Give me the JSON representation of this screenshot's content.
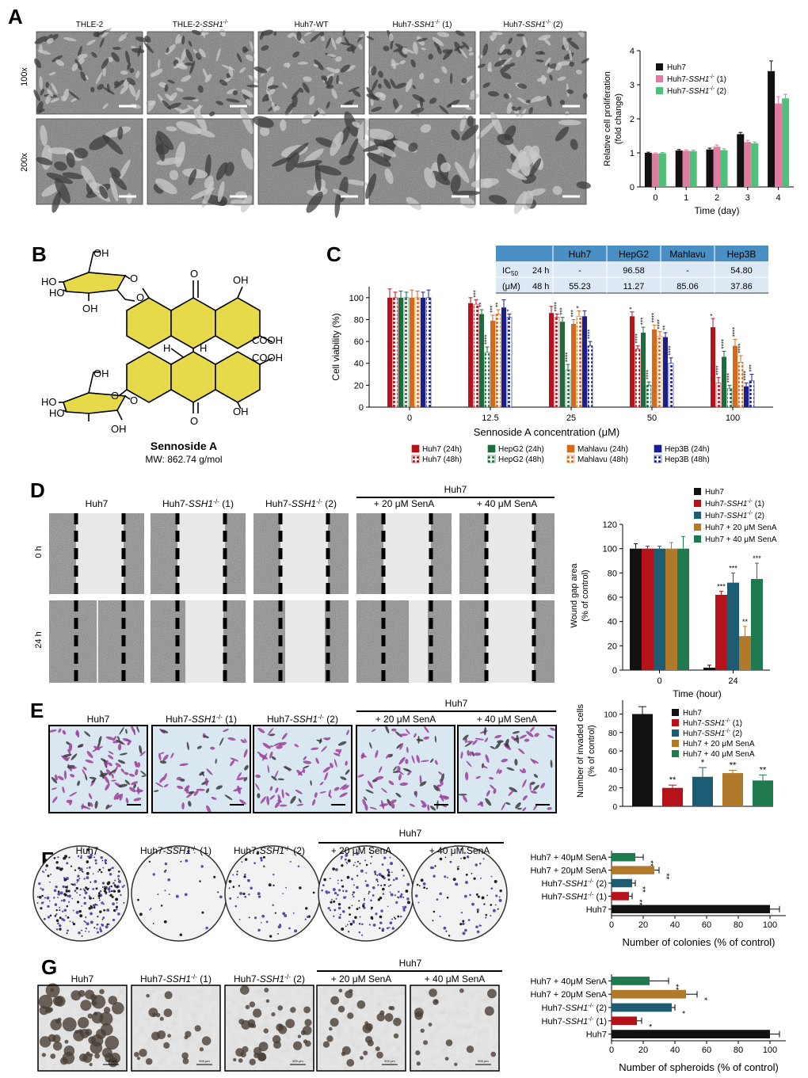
{
  "panels": {
    "A": {
      "letter": "A",
      "columns": [
        "THLE-2",
        "THLE-2-",
        "Huh7-WT",
        "Huh7-",
        "Huh7-"
      ],
      "column_italics": [
        "",
        "SSH1",
        "",
        "SSH1",
        "SSH1"
      ],
      "column_sup": [
        "",
        "-/-",
        "",
        "-/-",
        "-/-"
      ],
      "column_suffix": [
        "",
        "",
        "",
        "(1)",
        "(2)"
      ],
      "rows": [
        "100x",
        "200x"
      ]
    },
    "B": {
      "letter": "B",
      "name": "Sennoside A",
      "mw": "MW: 862.74 g/mol",
      "atoms": {
        "oh": "OH",
        "ho": "HO",
        "o": "O",
        "cooh": "COOH",
        "h": "H"
      }
    },
    "C": {
      "letter": "C",
      "table": {
        "headers": [
          "Huh7",
          "HepG2",
          "Mahlavu",
          "Hep3B"
        ],
        "rowhead": "IC",
        "rowhead_sub": "50",
        "rowhead_unit": "(μM)",
        "rows": [
          {
            "label": "24 h",
            "values": [
              "-",
              "96.58",
              "-",
              "54.80"
            ]
          },
          {
            "label": "48 h",
            "values": [
              "55.23",
              "11.27",
              "85.06",
              "37.86"
            ]
          }
        ]
      }
    },
    "D": {
      "letter": "D",
      "columns": [
        "Huh7",
        "Huh7-",
        "Huh7-",
        "+ 20 μM  SenA",
        "+ 40 μM  SenA"
      ],
      "column_italics": [
        "",
        "SSH1",
        "SSH1",
        "",
        ""
      ],
      "column_sup": [
        "",
        "-/-",
        "-/-",
        "",
        ""
      ],
      "column_suffix": [
        "",
        "(1)",
        "(2)",
        "",
        ""
      ],
      "group": "Huh7",
      "rows": [
        "0 h",
        "24 h"
      ]
    },
    "E": {
      "letter": "E",
      "columns": [
        "Huh7",
        "Huh7-",
        "Huh7-",
        "+ 20 μM  SenA",
        "+ 40 μM  SenA"
      ],
      "column_italics": [
        "",
        "SSH1",
        "SSH1",
        "",
        ""
      ],
      "column_sup": [
        "",
        "-/-",
        "-/-",
        "",
        ""
      ],
      "column_suffix": [
        "",
        "(1)",
        "(2)",
        "",
        ""
      ],
      "group": "Huh7"
    },
    "F": {
      "letter": "F",
      "columns": [
        "Huh7",
        "Huh7-",
        "Huh7-",
        "+ 20 μM  SenA",
        "+ 40 μM  SenA"
      ],
      "column_italics": [
        "",
        "SSH1",
        "SSH1",
        "",
        ""
      ],
      "column_sup": [
        "",
        "-/-",
        "-/-",
        "",
        ""
      ],
      "column_suffix": [
        "",
        "(1)",
        "(2)",
        "",
        ""
      ],
      "group": "Huh7"
    },
    "G": {
      "letter": "G",
      "columns": [
        "Huh7",
        "Huh7-",
        "Huh7-",
        "+ 20 μM  SenA",
        "+ 40 μM  SenA"
      ],
      "column_italics": [
        "",
        "SSH1",
        "SSH1",
        "",
        ""
      ],
      "column_sup": [
        "",
        "-/-",
        "-/-",
        "",
        ""
      ],
      "column_suffix": [
        "",
        "(1)",
        "(2)",
        "",
        ""
      ],
      "group": "Huh7",
      "scalebar": "500 μm"
    }
  },
  "colors": {
    "black": "#111111",
    "pink": "#e07aa0",
    "green": "#4fbf7a",
    "red": "#b5121b",
    "teal": "#1e5c73",
    "brown": "#b07a2a",
    "dkgreen": "#1f7a4f",
    "huh7": "#b5121b",
    "hepg2": "#1f6b3f",
    "mahlavu": "#d56a1c",
    "hep3b": "#1a1f8c",
    "table_head": "#4a8fc4",
    "table_row": "#dce9f5"
  },
  "chart_data": [
    {
      "id": "A",
      "type": "bar",
      "categories": [
        "0",
        "1",
        "2",
        "3",
        "4"
      ],
      "xlabel": "Time (day)",
      "ylabel": "Relative cell proliferation",
      "ylabel2": "(fold change)",
      "ylim": [
        0,
        4
      ],
      "yticks": [
        0,
        1,
        2,
        3,
        4
      ],
      "legend_placement": "top-left",
      "series": [
        {
          "name": "Huh7",
          "name_italic": "",
          "name_sup": "",
          "name_suffix": "",
          "color": "black",
          "values": [
            1.0,
            1.07,
            1.1,
            1.55,
            3.4
          ],
          "err": [
            0.02,
            0.03,
            0.04,
            0.05,
            0.3
          ]
        },
        {
          "name": "Huh7-",
          "name_italic": "SSH1",
          "name_sup": "-/-",
          "name_suffix": " (1)",
          "color": "pink",
          "values": [
            0.98,
            1.06,
            1.18,
            1.32,
            2.45
          ],
          "err": [
            0.02,
            0.03,
            0.05,
            0.05,
            0.2
          ]
        },
        {
          "name": "Huh7-",
          "name_italic": "SSH1",
          "name_sup": "-/-",
          "name_suffix": " (2)",
          "color": "green",
          "values": [
            0.99,
            1.05,
            1.08,
            1.28,
            2.6
          ],
          "err": [
            0.02,
            0.03,
            0.04,
            0.04,
            0.12
          ]
        }
      ]
    },
    {
      "id": "C",
      "type": "bar",
      "categories": [
        "0",
        "12.5",
        "25",
        "50",
        "100"
      ],
      "xlabel": "Sennoside A concentration (μM)",
      "ylabel": "Cell viability (%)",
      "ylim": [
        0,
        110
      ],
      "yticks": [
        0,
        20,
        40,
        60,
        80,
        100
      ],
      "legend_placement": "bottom",
      "series": [
        {
          "name": "Huh7 (24h)",
          "color": "huh7",
          "pattern": "solid",
          "values": [
            100,
            95,
            86,
            83,
            73
          ],
          "err": [
            8,
            5,
            6,
            4,
            8
          ],
          "sig": [
            "",
            "",
            "",
            "*",
            "*"
          ]
        },
        {
          "name": "Huh7 (48h)",
          "color": "huh7",
          "pattern": "dots",
          "values": [
            100,
            94,
            82,
            53,
            22
          ],
          "err": [
            5,
            4,
            3,
            3,
            5
          ],
          "sig": [
            "",
            "***",
            "****",
            "****",
            "****"
          ]
        },
        {
          "name": "HepG2 (24h)",
          "color": "hepg2",
          "pattern": "solid",
          "values": [
            100,
            85,
            78,
            68,
            46
          ],
          "err": [
            6,
            4,
            4,
            5,
            5
          ],
          "sig": [
            "",
            "**",
            "***",
            "***",
            "****"
          ]
        },
        {
          "name": "HepG2 (48h)",
          "color": "hepg2",
          "pattern": "dots",
          "values": [
            100,
            50,
            34,
            20,
            17
          ],
          "err": [
            5,
            5,
            5,
            3,
            3
          ],
          "sig": [
            "",
            "****",
            "****",
            "****",
            "****"
          ]
        },
        {
          "name": "Mahlavu (24h)",
          "color": "mahlavu",
          "pattern": "solid",
          "values": [
            100,
            79,
            76,
            71,
            56
          ],
          "err": [
            7,
            5,
            4,
            4,
            6
          ],
          "sig": [
            "",
            "***",
            "***",
            "****",
            "****"
          ]
        },
        {
          "name": "Mahlavu (48h)",
          "color": "mahlavu",
          "pattern": "dots",
          "values": [
            100,
            85,
            83,
            65,
            41
          ],
          "err": [
            6,
            4,
            5,
            4,
            6
          ],
          "sig": [
            "",
            "**",
            "*",
            "****",
            "****"
          ]
        },
        {
          "name": "Hep3B (24h)",
          "color": "hep3b",
          "pattern": "solid",
          "values": [
            100,
            91,
            83,
            64,
            19
          ],
          "err": [
            5,
            7,
            5,
            4,
            3
          ],
          "sig": [
            "",
            "",
            "",
            "**",
            "****"
          ]
        },
        {
          "name": "Hep3B (48h)",
          "color": "hep3b",
          "pattern": "dots",
          "values": [
            100,
            82,
            56,
            40,
            24
          ],
          "err": [
            7,
            3,
            4,
            5,
            6
          ],
          "sig": [
            "",
            "*",
            "****",
            "****",
            "***"
          ]
        }
      ]
    },
    {
      "id": "D",
      "type": "bar",
      "categories": [
        "0",
        "24"
      ],
      "xlabel": "Time (hour)",
      "ylabel": "Wound gap area",
      "ylabel2": "(% of control)",
      "ylim": [
        0,
        120
      ],
      "yticks": [
        0,
        20,
        40,
        60,
        80,
        100,
        120
      ],
      "legend_placement": "top",
      "series": [
        {
          "name": "Huh7",
          "name_italic": "",
          "name_sup": "",
          "name_suffix": "",
          "color": "black",
          "values": [
            100,
            2
          ],
          "err": [
            4,
            2
          ],
          "sig": [
            "",
            ""
          ]
        },
        {
          "name": "Huh7-",
          "name_italic": "SSH1",
          "name_sup": "-/-",
          "name_suffix": " (1)",
          "color": "red",
          "values": [
            100,
            62
          ],
          "err": [
            2,
            3
          ],
          "sig": [
            "",
            "***"
          ]
        },
        {
          "name": "Huh7-",
          "name_italic": "SSH1",
          "name_sup": "-/-",
          "name_suffix": " (2)",
          "color": "teal",
          "values": [
            100,
            72
          ],
          "err": [
            2,
            8
          ],
          "sig": [
            "",
            "***"
          ]
        },
        {
          "name": "Huh7 + 20 μM SenA",
          "name_italic": "",
          "name_sup": "",
          "name_suffix": "",
          "color": "brown",
          "values": [
            100,
            28
          ],
          "err": [
            5,
            8
          ],
          "sig": [
            "",
            "**"
          ]
        },
        {
          "name": "Huh7 + 40 μM SenA",
          "name_italic": "",
          "name_sup": "",
          "name_suffix": "",
          "color": "dkgreen",
          "values": [
            100,
            75
          ],
          "err": [
            10,
            13
          ],
          "sig": [
            "",
            "***"
          ]
        }
      ]
    },
    {
      "id": "E",
      "type": "bar",
      "categories": [
        "Huh7",
        "Huh7-SSH1-/- (1)",
        "Huh7-SSH1-/- (2)",
        "Huh7 + 20 μM SenA",
        "Huh7 + 40 μM SenA"
      ],
      "ylabel": "Number of invaded cells",
      "ylabel2": "(% of control)",
      "ylim": [
        0,
        115
      ],
      "yticks": [
        0,
        20,
        40,
        60,
        80,
        100
      ],
      "legend_placement": "top-right",
      "series": [
        {
          "name": "Huh7",
          "name_italic": "",
          "name_sup": "",
          "name_suffix": "",
          "color": "black",
          "value": 100,
          "err": 8,
          "sig": ""
        },
        {
          "name": "Huh7-",
          "name_italic": "SSH1",
          "name_sup": "-/-",
          "name_suffix": " (1)",
          "color": "red",
          "value": 20,
          "err": 3,
          "sig": "**"
        },
        {
          "name": "Huh7-",
          "name_italic": "SSH1",
          "name_sup": "-/-",
          "name_suffix": " (2)",
          "color": "teal",
          "value": 32,
          "err": 10,
          "sig": "*"
        },
        {
          "name": "Huh7 + 20 μM SenA",
          "name_italic": "",
          "name_sup": "",
          "name_suffix": "",
          "color": "brown",
          "value": 36,
          "err": 3,
          "sig": "**"
        },
        {
          "name": "Huh7 + 40 μM SenA",
          "name_italic": "",
          "name_sup": "",
          "name_suffix": "",
          "color": "dkgreen",
          "value": 28,
          "err": 6,
          "sig": "**"
        }
      ]
    },
    {
      "id": "F",
      "type": "bar",
      "orientation": "horizontal",
      "xlabel": "Number of colonies (% of control)",
      "xlim": [
        0,
        110
      ],
      "xticks": [
        0,
        20,
        40,
        60,
        80,
        100
      ],
      "rows": [
        {
          "label": "Huh7 + 40μM SenA",
          "italic": "",
          "sup": "",
          "suffix": "",
          "color": "dkgreen",
          "value": 15,
          "err": 5,
          "sig": "**"
        },
        {
          "label": "Huh7 + 20μM SenA",
          "italic": "",
          "sup": "",
          "suffix": "",
          "color": "brown",
          "value": 27,
          "err": 3,
          "sig": "**"
        },
        {
          "label": "Huh7-",
          "italic": "SSH1",
          "sup": "-/-",
          "suffix": " (2)",
          "color": "teal",
          "value": 13,
          "err": 2,
          "sig": "**"
        },
        {
          "label": "Huh7-",
          "italic": "SSH1",
          "sup": "-/-",
          "suffix": " (1)",
          "color": "red",
          "value": 11,
          "err": 2,
          "sig": "**"
        },
        {
          "label": "Huh7",
          "italic": "",
          "sup": "",
          "suffix": "",
          "color": "black",
          "value": 100,
          "err": 6,
          "sig": ""
        }
      ]
    },
    {
      "id": "G",
      "type": "bar",
      "orientation": "horizontal",
      "xlabel": "Number of spheroids (% of control)",
      "xlim": [
        0,
        110
      ],
      "xticks": [
        0,
        20,
        40,
        60,
        80,
        100
      ],
      "rows": [
        {
          "label": "Huh7 + 40μM SenA",
          "italic": "",
          "sup": "",
          "suffix": "",
          "color": "dkgreen",
          "value": 24,
          "err": 12,
          "sig": "**"
        },
        {
          "label": "Huh7 + 20μM SenA",
          "italic": "",
          "sup": "",
          "suffix": "",
          "color": "brown",
          "value": 47,
          "err": 7,
          "sig": "*"
        },
        {
          "label": "Huh7-",
          "italic": "SSH1",
          "sup": "-/-",
          "suffix": "(2)",
          "color": "teal",
          "value": 38,
          "err": 2,
          "sig": "*"
        },
        {
          "label": "Huh7-",
          "italic": "SSH1",
          "sup": "-/-",
          "suffix": "(1)",
          "color": "red",
          "value": 16,
          "err": 3,
          "sig": "*"
        },
        {
          "label": "Huh7",
          "italic": "",
          "sup": "",
          "suffix": "",
          "color": "black",
          "value": 100,
          "err": 6,
          "sig": ""
        }
      ]
    }
  ]
}
